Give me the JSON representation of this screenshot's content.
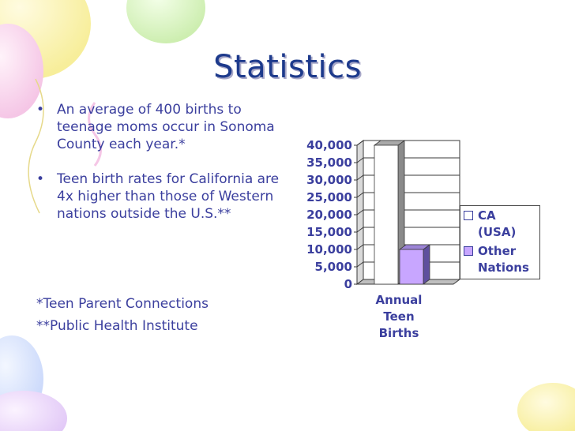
{
  "slide": {
    "title": "Statistics",
    "bullets": [
      "An average of 400 births to teenage moms occur in Sonoma County each year.*",
      "Teen birth rates for California are 4x higher than those of Western nations outside the U.S.**"
    ],
    "notes": [
      "*Teen Parent Connections",
      "**Public Health Institute"
    ]
  },
  "colors": {
    "title": "#1d3a8c",
    "text": "#3b3f9e",
    "series_ca": "#ffffff",
    "series_other": "#c8a6ff",
    "axis": "#3a3a3a"
  },
  "chart_data": {
    "type": "bar",
    "title": "",
    "categories": [
      "Annual Teen Births"
    ],
    "category_lines": [
      "Annual",
      "Teen",
      "Births"
    ],
    "series": [
      {
        "name": "CA (USA)",
        "legend_lines": [
          "CA",
          "(USA)"
        ],
        "values": [
          40000
        ]
      },
      {
        "name": "Other Nations",
        "legend_lines": [
          "Other",
          "Nations"
        ],
        "values": [
          10000
        ]
      }
    ],
    "yticks": [
      "0",
      "5,000",
      "10,000",
      "15,000",
      "20,000",
      "25,000",
      "30,000",
      "35,000",
      "40,000"
    ],
    "ytick_values": [
      0,
      5000,
      10000,
      15000,
      20000,
      25000,
      30000,
      35000,
      40000
    ],
    "ylim": [
      0,
      40000
    ],
    "xlabel": "",
    "ylabel": "",
    "legend_position": "right",
    "grid": true
  }
}
